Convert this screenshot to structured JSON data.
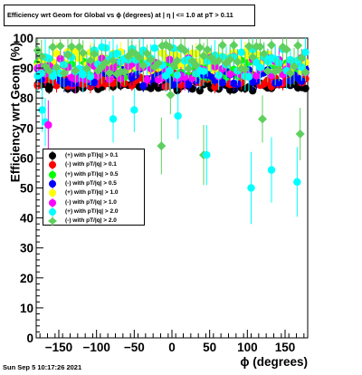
{
  "chart_data": {
    "type": "scatter",
    "title": "Efficiency wrt Geom for Global vs ϕ (degrees) at |  η | <= 1.0 at pT > 0.11",
    "xlabel": "ϕ (degrees)",
    "ylabel": "Efficiency wrt Geom (%)",
    "xlim": [
      -180,
      180
    ],
    "ylim": [
      0,
      100
    ],
    "xticks": [
      -150,
      -100,
      -50,
      0,
      50,
      100,
      150
    ],
    "xtick_labels": [
      "−150",
      "−100",
      "−50",
      "0",
      "50",
      "100",
      "150"
    ],
    "yticks": [
      0,
      10,
      20,
      30,
      40,
      50,
      60,
      70,
      80,
      90,
      100
    ],
    "ytick_labels": [
      "0",
      "10",
      "20",
      "30",
      "40",
      "50",
      "60",
      "70",
      "80",
      "90",
      "100"
    ],
    "grid": false,
    "legend_position": "middle-left",
    "series": [
      {
        "name": "(+) with pT/|q| > 0.1",
        "color": "#000000",
        "marker": "circle"
      },
      {
        "name": "(-) with pT/|q| > 0.1",
        "color": "#ff0000",
        "marker": "circle"
      },
      {
        "name": "(+) with pT/|q| > 0.5",
        "color": "#00ff00",
        "marker": "circle"
      },
      {
        "name": "(-) with pT/|q| > 0.5",
        "color": "#0000ff",
        "marker": "circle"
      },
      {
        "name": "(+) with pT/|q| > 1.0",
        "color": "#ffff00",
        "marker": "circle"
      },
      {
        "name": "(-) with pT/|q| > 1.0",
        "color": "#ff00ff",
        "marker": "circle"
      },
      {
        "name": "(+) with pT/|q| > 2.0",
        "color": "#00ffff",
        "marker": "circle"
      },
      {
        "name": "(-) with pT/|q| > 2.0",
        "color": "#5fd05f",
        "marker": "diamond"
      }
    ],
    "outliers_low": [
      {
        "series": 6,
        "x": -172,
        "y": 76
      },
      {
        "series": 6,
        "x": -168,
        "y": 72
      },
      {
        "series": 5,
        "x": -164,
        "y": 71
      },
      {
        "series": 6,
        "x": -78,
        "y": 73
      },
      {
        "series": 6,
        "x": -50,
        "y": 76
      },
      {
        "series": 7,
        "x": -14,
        "y": 64
      },
      {
        "series": 6,
        "x": 8,
        "y": 74
      },
      {
        "series": 7,
        "x": 42,
        "y": 61
      },
      {
        "series": 6,
        "x": 46,
        "y": 61
      },
      {
        "series": 6,
        "x": 105,
        "y": 50
      },
      {
        "series": 6,
        "x": 132,
        "y": 56
      },
      {
        "series": 6,
        "x": 166,
        "y": 52
      },
      {
        "series": 7,
        "x": 120,
        "y": 73
      },
      {
        "series": 7,
        "x": 170,
        "y": 68
      },
      {
        "series": 7,
        "x": -2,
        "y": 81
      }
    ]
  },
  "footer": {
    "timestamp": "Sun Sep  5 10:17:26 2021"
  }
}
